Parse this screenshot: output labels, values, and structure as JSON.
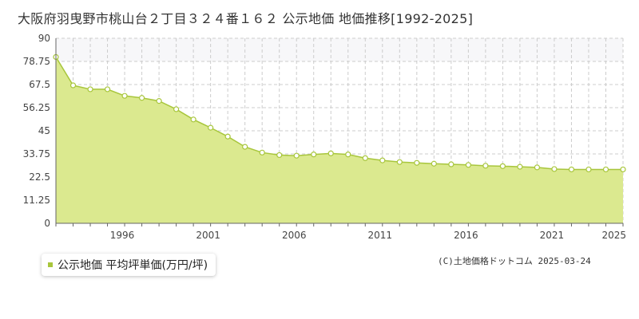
{
  "header": {
    "title": "大阪府羽曳野市桃山台２丁目３２４番１６２ 公示地価 地価推移[1992-2025]"
  },
  "legend": {
    "label": "公示地価 平均坪単価(万円/坪)"
  },
  "footer": {
    "credit": "(C)土地価格ドットコム 2025-03-24"
  },
  "colors": {
    "fill": "#dbe98f",
    "line": "#a8c63c",
    "point_fill": "#ffffff",
    "grid": "#cccccc",
    "upper_band": "#f7f7f9"
  },
  "chart_data": {
    "type": "area",
    "x": [
      1992,
      1993,
      1994,
      1995,
      1996,
      1997,
      1998,
      1999,
      2000,
      2001,
      2002,
      2003,
      2004,
      2005,
      2006,
      2007,
      2008,
      2009,
      2010,
      2011,
      2012,
      2013,
      2014,
      2015,
      2016,
      2017,
      2018,
      2019,
      2020,
      2021,
      2022,
      2023,
      2024,
      2025
    ],
    "series": [
      {
        "values": [
          80.9,
          67.1,
          65.2,
          65.2,
          62.0,
          61.0,
          59.5,
          55.5,
          50.5,
          46.5,
          42.2,
          37.2,
          34.4,
          33.2,
          32.9,
          33.5,
          34.0,
          33.5,
          31.7,
          30.6,
          29.8,
          29.4,
          29.0,
          28.7,
          28.4,
          28.0,
          27.8,
          27.5,
          27.2,
          26.4,
          26.2,
          26.2,
          26.2,
          26.2
        ]
      }
    ],
    "y_ticks": [
      "0",
      "11.25",
      "22.5",
      "33.75",
      "45",
      "56.25",
      "67.5",
      "78.75",
      "90"
    ],
    "x_tick_labels": [
      "1996",
      "2001",
      "2006",
      "2011",
      "2016",
      "2021",
      "2025"
    ],
    "x_tick_years": [
      1996,
      2001,
      2006,
      2011,
      2016,
      2021,
      2025
    ],
    "ylim": [
      0,
      90
    ],
    "xlim": [
      1992,
      2025
    ],
    "grid": true
  }
}
